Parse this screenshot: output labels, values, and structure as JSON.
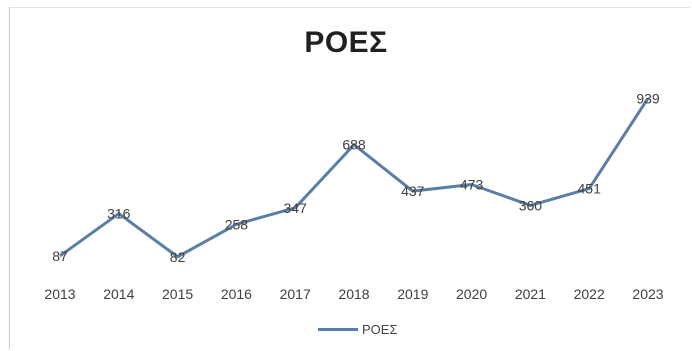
{
  "chart_data": {
    "type": "line",
    "title": "ΡΟΕΣ",
    "xlabel": "",
    "ylabel": "",
    "x": [
      "2013",
      "2014",
      "2015",
      "2016",
      "2017",
      "2018",
      "2019",
      "2020",
      "2021",
      "2022",
      "2023"
    ],
    "series": [
      {
        "name": "ΡΟΕΣ",
        "values": [
          87,
          316,
          82,
          258,
          347,
          688,
          437,
          473,
          360,
          451,
          939
        ],
        "color": "#5b7ea4"
      }
    ],
    "ylim": [
      0,
      1000
    ],
    "data_labels": true,
    "grid": false,
    "legend": "bottom"
  }
}
